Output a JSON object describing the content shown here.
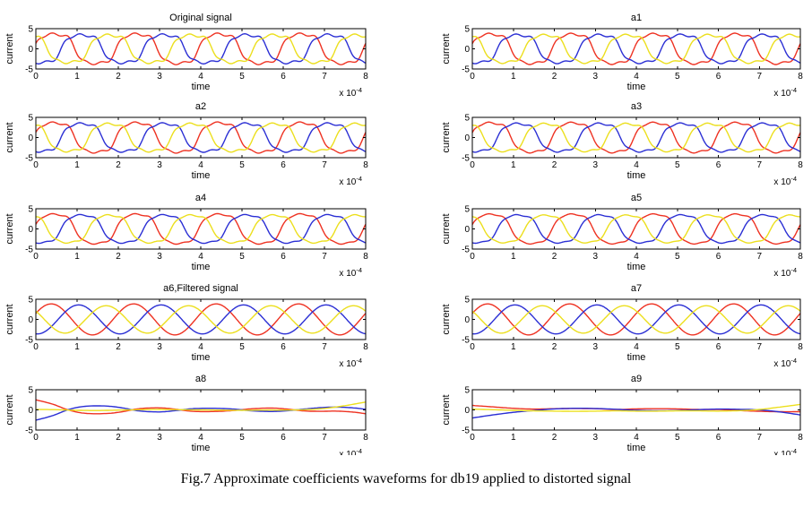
{
  "figure": {
    "caption": "Fig.7 Approximate coefficients waveforms for db19 applied to distorted signal"
  },
  "palette": {
    "red": "#ee3222",
    "blue": "#2b2fd4",
    "yellow": "#ecdf1d",
    "axis": "#000000",
    "background": "#ffffff"
  },
  "axes": {
    "xlabel": "time",
    "ylabel": "current",
    "xticks": [
      0,
      1,
      2,
      3,
      4,
      5,
      6,
      7,
      8
    ],
    "yticks": [
      5,
      0,
      -5
    ],
    "xlim": [
      0,
      8
    ],
    "ylim": [
      -5,
      5
    ],
    "x_scale_label": "x 10",
    "x_scale_exponent": "-4",
    "grid": false,
    "legend": "none"
  },
  "chart_data": [
    {
      "type": "line",
      "title": "Original signal",
      "waveform": "distorted",
      "period": 2,
      "steepness": 1.85,
      "ripple": 0.34,
      "series": [
        {
          "name": "red",
          "amplitude": 3.6,
          "phase": 0.15
        },
        {
          "name": "blue",
          "amplitude": 3.4,
          "phase": -1.944
        },
        {
          "name": "yellow",
          "amplitude": 3.35,
          "phase": -4.039
        }
      ]
    },
    {
      "type": "line",
      "title": "a1",
      "waveform": "distorted",
      "period": 2,
      "steepness": 1.8,
      "ripple": 0.3,
      "series": [
        {
          "name": "red",
          "amplitude": 3.6,
          "phase": 0.15
        },
        {
          "name": "blue",
          "amplitude": 3.4,
          "phase": -1.944
        },
        {
          "name": "yellow",
          "amplitude": 3.35,
          "phase": -4.039
        }
      ]
    },
    {
      "type": "line",
      "title": "a2",
      "waveform": "distorted",
      "period": 2,
      "steepness": 1.8,
      "ripple": 0.28,
      "series": [
        {
          "name": "red",
          "amplitude": 3.6,
          "phase": 0.15
        },
        {
          "name": "blue",
          "amplitude": 3.4,
          "phase": -1.944
        },
        {
          "name": "yellow",
          "amplitude": 3.35,
          "phase": -4.039
        }
      ]
    },
    {
      "type": "line",
      "title": "a3",
      "waveform": "distorted",
      "period": 2,
      "steepness": 1.75,
      "ripple": 0.25,
      "series": [
        {
          "name": "red",
          "amplitude": 3.6,
          "phase": 0.15
        },
        {
          "name": "blue",
          "amplitude": 3.4,
          "phase": -1.944
        },
        {
          "name": "yellow",
          "amplitude": 3.35,
          "phase": -4.039
        }
      ]
    },
    {
      "type": "line",
      "title": "a4",
      "waveform": "distorted",
      "period": 2,
      "steepness": 1.65,
      "ripple": 0.2,
      "series": [
        {
          "name": "red",
          "amplitude": 3.6,
          "phase": 0.15
        },
        {
          "name": "blue",
          "amplitude": 3.4,
          "phase": -1.944
        },
        {
          "name": "yellow",
          "amplitude": 3.35,
          "phase": -4.039
        }
      ]
    },
    {
      "type": "line",
      "title": "a5",
      "waveform": "distorted",
      "period": 2,
      "steepness": 1.6,
      "ripple": 0.16,
      "series": [
        {
          "name": "red",
          "amplitude": 3.6,
          "phase": 0.15
        },
        {
          "name": "blue",
          "amplitude": 3.4,
          "phase": -1.944
        },
        {
          "name": "yellow",
          "amplitude": 3.35,
          "phase": -4.039
        }
      ]
    },
    {
      "type": "line",
      "title": "a6,Filtered signal",
      "waveform": "smooth",
      "period": 2,
      "steepness": 0,
      "ripple": 0,
      "series": [
        {
          "name": "red",
          "amplitude": 3.85,
          "phase": 0.4
        },
        {
          "name": "blue",
          "amplitude": 3.6,
          "phase": -1.694
        },
        {
          "name": "yellow",
          "amplitude": 3.4,
          "phase": -3.789
        }
      ]
    },
    {
      "type": "line",
      "title": "a7",
      "waveform": "smooth",
      "period": 2,
      "steepness": 0,
      "ripple": 0,
      "series": [
        {
          "name": "red",
          "amplitude": 3.85,
          "phase": 0.4
        },
        {
          "name": "blue",
          "amplitude": 3.6,
          "phase": -1.694
        },
        {
          "name": "yellow",
          "amplitude": 3.4,
          "phase": -3.789
        }
      ]
    },
    {
      "type": "line",
      "title": "a8",
      "waveform": "points",
      "series": [
        {
          "name": "red",
          "points": [
            [
              0,
              2.5
            ],
            [
              0.4,
              1.45
            ],
            [
              0.8,
              -0.05
            ],
            [
              1.2,
              -0.85
            ],
            [
              1.7,
              -0.9
            ],
            [
              2.1,
              -0.45
            ],
            [
              2.5,
              0.3
            ],
            [
              3.0,
              0.5
            ],
            [
              3.4,
              0.15
            ],
            [
              3.8,
              -0.35
            ],
            [
              4.3,
              -0.4
            ],
            [
              4.8,
              -0.15
            ],
            [
              5.2,
              0.25
            ],
            [
              5.7,
              0.45
            ],
            [
              6.1,
              0.2
            ],
            [
              6.5,
              -0.25
            ],
            [
              6.9,
              -0.35
            ],
            [
              7.3,
              -0.3
            ],
            [
              7.7,
              -0.55
            ],
            [
              8,
              -0.95
            ]
          ]
        },
        {
          "name": "blue",
          "points": [
            [
              0,
              -2.55
            ],
            [
              0.4,
              -1.45
            ],
            [
              0.8,
              0.1
            ],
            [
              1.2,
              0.9
            ],
            [
              1.7,
              0.95
            ],
            [
              2.1,
              0.5
            ],
            [
              2.5,
              -0.25
            ],
            [
              3.0,
              -0.5
            ],
            [
              3.4,
              -0.15
            ],
            [
              3.8,
              0.3
            ],
            [
              4.3,
              0.4
            ],
            [
              4.8,
              0.2
            ],
            [
              5.2,
              -0.2
            ],
            [
              5.7,
              -0.4
            ],
            [
              6.1,
              -0.2
            ],
            [
              6.5,
              0.2
            ],
            [
              6.9,
              0.55
            ],
            [
              7.3,
              0.7
            ],
            [
              7.7,
              0.5
            ],
            [
              8,
              0.15
            ]
          ]
        },
        {
          "name": "yellow",
          "points": [
            [
              0,
              0.1
            ],
            [
              0.5,
              0.05
            ],
            [
              1,
              -0.1
            ],
            [
              1.5,
              -0.15
            ],
            [
              2,
              -0.05
            ],
            [
              2.5,
              0.05
            ],
            [
              3,
              0.1
            ],
            [
              3.5,
              0.05
            ],
            [
              4,
              0
            ],
            [
              4.5,
              -0.05
            ],
            [
              5,
              -0.1
            ],
            [
              5.5,
              -0.05
            ],
            [
              6,
              -0.05
            ],
            [
              6.5,
              0.05
            ],
            [
              7,
              0.35
            ],
            [
              7.5,
              1.05
            ],
            [
              8,
              1.95
            ]
          ]
        }
      ]
    },
    {
      "type": "line",
      "title": "a9",
      "waveform": "points",
      "series": [
        {
          "name": "red",
          "points": [
            [
              0,
              1.1
            ],
            [
              0.5,
              0.75
            ],
            [
              1,
              0.4
            ],
            [
              1.5,
              0.2
            ],
            [
              2,
              0.3
            ],
            [
              2.5,
              0.35
            ],
            [
              3,
              0.3
            ],
            [
              3.5,
              0.1
            ],
            [
              4,
              0.25
            ],
            [
              4.5,
              0.3
            ],
            [
              5,
              0.25
            ],
            [
              5.5,
              0.1
            ],
            [
              6,
              0.1
            ],
            [
              6.5,
              -0.15
            ],
            [
              7,
              -0.35
            ],
            [
              7.5,
              -0.45
            ],
            [
              8,
              -0.45
            ]
          ]
        },
        {
          "name": "blue",
          "points": [
            [
              0,
              -2.0
            ],
            [
              0.5,
              -1.25
            ],
            [
              1,
              -0.6
            ],
            [
              1.5,
              -0.15
            ],
            [
              2,
              0.25
            ],
            [
              2.5,
              0.4
            ],
            [
              3,
              0.35
            ],
            [
              3.5,
              0.15
            ],
            [
              4,
              -0.1
            ],
            [
              4.5,
              -0.2
            ],
            [
              5,
              -0.15
            ],
            [
              5.5,
              0.05
            ],
            [
              6,
              0.2
            ],
            [
              6.5,
              0.15
            ],
            [
              7,
              0
            ],
            [
              7.5,
              -0.5
            ],
            [
              8,
              -1.25
            ]
          ]
        },
        {
          "name": "yellow",
          "points": [
            [
              0,
              0.2
            ],
            [
              0.5,
              0.05
            ],
            [
              1,
              -0.1
            ],
            [
              1.5,
              -0.25
            ],
            [
              2,
              -0.3
            ],
            [
              2.5,
              -0.35
            ],
            [
              3,
              -0.3
            ],
            [
              3.5,
              -0.25
            ],
            [
              4,
              -0.3
            ],
            [
              4.5,
              -0.3
            ],
            [
              5,
              -0.25
            ],
            [
              5.5,
              -0.25
            ],
            [
              6,
              -0.3
            ],
            [
              6.5,
              -0.2
            ],
            [
              7,
              0.1
            ],
            [
              7.5,
              0.7
            ],
            [
              8,
              1.35
            ]
          ]
        }
      ]
    }
  ]
}
